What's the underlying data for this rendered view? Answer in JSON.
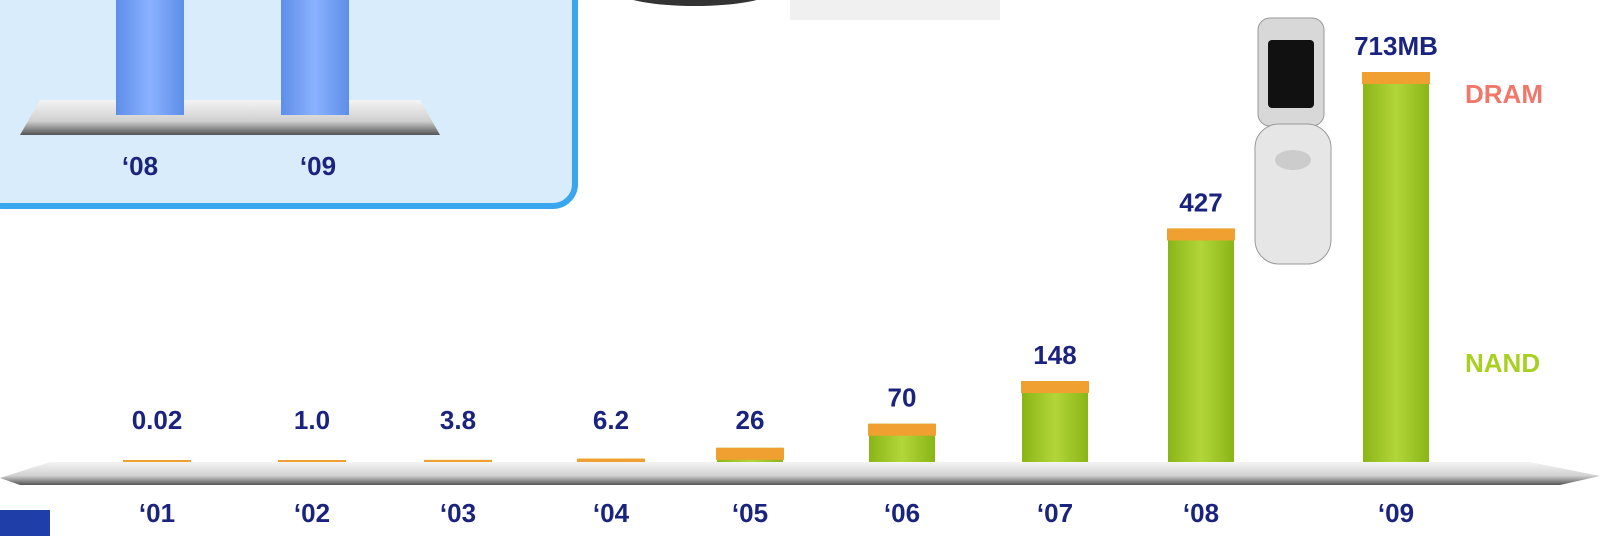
{
  "chart_data": {
    "type": "bar",
    "categories": [
      "‘01",
      "‘02",
      "‘03",
      "‘04",
      "‘05",
      "‘06",
      "‘07",
      "‘08",
      "‘09"
    ],
    "values": [
      0.02,
      1.0,
      3.8,
      6.2,
      26,
      70,
      148,
      427,
      713
    ],
    "value_labels": [
      "0.02",
      "1.0",
      "3.8",
      "6.2",
      "26",
      "70",
      "148",
      "427",
      "713MB"
    ],
    "color": "#9cc31e",
    "cap_color": "#f0a030",
    "legend_labels": {
      "dram": "DRAM",
      "nand": "NAND"
    },
    "legend_colors": {
      "dram": "#f0786a",
      "nand": "#a8d020"
    },
    "inset": {
      "categories": [
        "‘08",
        "‘09"
      ]
    }
  }
}
